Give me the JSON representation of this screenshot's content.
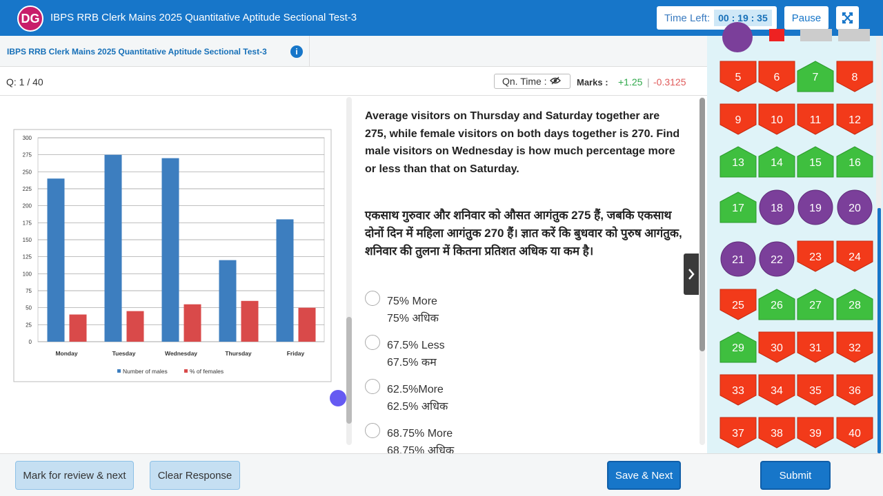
{
  "header": {
    "logo": "DG",
    "title": "IBPS RRB Clerk Mains 2025 Quantitative Aptitude Sectional Test-3",
    "time_label": "Time Left:",
    "time": "00 : 19 : 35",
    "pause": "Pause"
  },
  "subheader": {
    "title": "IBPS RRB Clerk Mains 2025 Quantitative Aptitude Sectional Test-3"
  },
  "info": {
    "question_no": "Q: 1 / 40",
    "qn_time": "Qn. Time :",
    "marks_label": "Marks :",
    "positive": "+1.25",
    "separator": "|",
    "negative": "-0.3125"
  },
  "chart_data": {
    "type": "bar",
    "categories": [
      "Monday",
      "Tuesday",
      "Wednesday",
      "Thursday",
      "Friday"
    ],
    "series": [
      {
        "name": "Number of males",
        "color": "#3d7ebf",
        "values": [
          240,
          275,
          270,
          120,
          180
        ]
      },
      {
        "name": "% of females",
        "color": "#d94a4a",
        "values": [
          40,
          45,
          55,
          60,
          50
        ]
      }
    ],
    "ylim": [
      0,
      300
    ],
    "yticks": [
      0,
      25,
      50,
      75,
      100,
      125,
      150,
      175,
      200,
      225,
      250,
      275,
      300
    ],
    "grid": true,
    "legend": "bottom"
  },
  "question": {
    "english": "Average visitors on Thursday and Saturday together are 275, while female visitors on both days together is 270. Find male visitors on Wednesday is how much percentage more or less than that on Saturday.",
    "hindi": "एकसाथ गुरुवार और शनिवार को औसत आगंतुक 275 हैं, जबकि एकसाथ दोनों दिन में महिला आगंतुक 270 हैं। ज्ञात करें कि बुधवार को पुरुष आगंतुक, शनिवार की तुलना में कितना प्रतिशत अधिक या कम है।",
    "options": [
      {
        "english": "75% More",
        "hindi": "75% अधिक"
      },
      {
        "english": "67.5% Less",
        "hindi": "67.5% कम"
      },
      {
        "english": "62.5%More",
        "hindi": "62.5% अधिक"
      },
      {
        "english": "68.75% More",
        "hindi": "68.75% अधिक"
      }
    ]
  },
  "palette": [
    {
      "label": 5,
      "color": "red"
    },
    {
      "label": 6,
      "color": "red"
    },
    {
      "label": 7,
      "color": "green"
    },
    {
      "label": 8,
      "color": "red"
    },
    {
      "label": 9,
      "color": "red"
    },
    {
      "label": 10,
      "color": "red"
    },
    {
      "label": 11,
      "color": "red"
    },
    {
      "label": 12,
      "color": "red"
    },
    {
      "label": 13,
      "color": "green"
    },
    {
      "label": 14,
      "color": "green"
    },
    {
      "label": 15,
      "color": "green"
    },
    {
      "label": 16,
      "color": "green"
    },
    {
      "label": 17,
      "color": "green"
    },
    {
      "label": 18,
      "color": "purple"
    },
    {
      "label": 19,
      "color": "purple"
    },
    {
      "label": 20,
      "color": "purple"
    },
    {
      "label": 21,
      "color": "purple"
    },
    {
      "label": 22,
      "color": "purple"
    },
    {
      "label": 23,
      "color": "red"
    },
    {
      "label": 24,
      "color": "red"
    },
    {
      "label": 25,
      "color": "red"
    },
    {
      "label": 26,
      "color": "green"
    },
    {
      "label": 27,
      "color": "green"
    },
    {
      "label": 28,
      "color": "green"
    },
    {
      "label": 29,
      "color": "green"
    },
    {
      "label": 30,
      "color": "red"
    },
    {
      "label": 31,
      "color": "red"
    },
    {
      "label": 32,
      "color": "red"
    },
    {
      "label": 33,
      "color": "red"
    },
    {
      "label": 34,
      "color": "red"
    },
    {
      "label": 35,
      "color": "red"
    },
    {
      "label": 36,
      "color": "red"
    },
    {
      "label": 37,
      "color": "red"
    },
    {
      "label": 38,
      "color": "red"
    },
    {
      "label": 39,
      "color": "red"
    },
    {
      "label": 40,
      "color": "red"
    }
  ],
  "footer": {
    "mark_review": "Mark for review & next",
    "clear": "Clear Response",
    "save_next": "Save & Next",
    "submit": "Submit"
  }
}
